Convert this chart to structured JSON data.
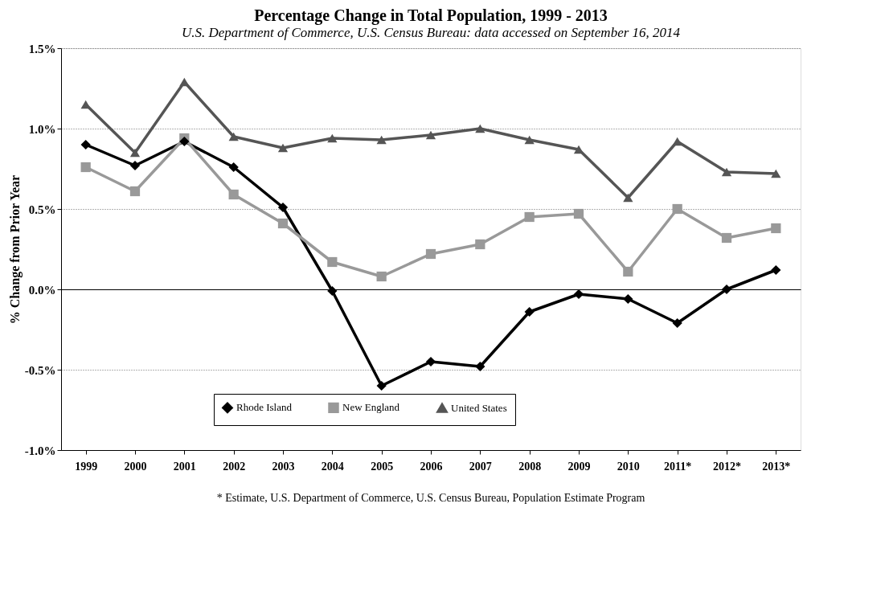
{
  "chart_data": {
    "type": "line",
    "title": "Percentage Change in Total Population, 1999 - 2013",
    "subtitle": "U.S. Department of Commerce, U.S. Census Bureau: data accessed on September 16, 2014",
    "ylabel": "% Change from Prior Year",
    "categories": [
      "1999",
      "2000",
      "2001",
      "2002",
      "2003",
      "2004",
      "2005",
      "2006",
      "2007",
      "2008",
      "2009",
      "2010",
      "2011*",
      "2012*",
      "2013*"
    ],
    "series": [
      {
        "name": "Rhode Island",
        "color": "#000000",
        "marker": "diamond",
        "values": [
          0.9,
          0.77,
          0.92,
          0.76,
          0.51,
          -0.01,
          -0.6,
          -0.45,
          -0.48,
          -0.14,
          -0.03,
          -0.06,
          -0.21,
          0.0,
          0.12
        ]
      },
      {
        "name": "New England",
        "color": "#999999",
        "marker": "square",
        "values": [
          0.76,
          0.61,
          0.94,
          0.59,
          0.41,
          0.17,
          0.08,
          0.22,
          0.28,
          0.45,
          0.47,
          0.11,
          0.5,
          0.32,
          0.38
        ]
      },
      {
        "name": "United States",
        "color": "#555555",
        "marker": "triangle",
        "values": [
          1.15,
          0.85,
          1.29,
          0.95,
          0.88,
          0.94,
          0.93,
          0.96,
          1.0,
          0.93,
          0.87,
          0.57,
          0.92,
          0.73,
          0.72
        ]
      }
    ],
    "ylim": [
      -1.0,
      1.5
    ],
    "yticks": [
      {
        "value": -1.0,
        "label": "-1.0%"
      },
      {
        "value": -0.5,
        "label": "-0.5%"
      },
      {
        "value": 0.0,
        "label": "0.0%"
      },
      {
        "value": 0.5,
        "label": "0.5%"
      },
      {
        "value": 1.0,
        "label": "1.0%"
      },
      {
        "value": 1.5,
        "label": "1.5%"
      }
    ],
    "grid": "y",
    "legend": "bottom",
    "line_style": "solid",
    "annotations": [
      "* Estimate, U.S. Department of Commerce, U.S. Census Bureau, Population Estimate Program"
    ]
  }
}
